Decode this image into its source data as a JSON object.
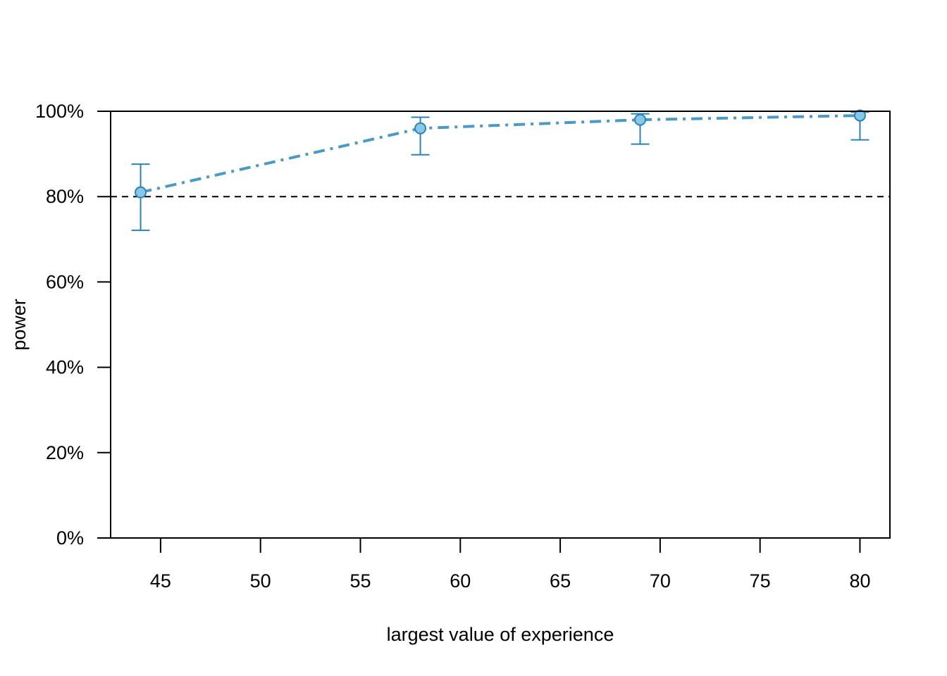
{
  "chart_data": {
    "type": "line",
    "title": "",
    "xlabel": "largest value of experience",
    "ylabel": "power",
    "xlim": [
      42.5,
      81.5
    ],
    "ylim": [
      0,
      100
    ],
    "x_ticks": [
      45,
      50,
      55,
      60,
      65,
      70,
      75,
      80
    ],
    "x_tick_labels": [
      "45",
      "50",
      "55",
      "60",
      "65",
      "70",
      "75",
      "80"
    ],
    "y_ticks": [
      0,
      20,
      40,
      60,
      80,
      100
    ],
    "y_tick_labels": [
      "0%",
      "20%",
      "40%",
      "60%",
      "80%",
      "100%"
    ],
    "reference_line": {
      "y": 80,
      "style": "dashed",
      "color": "#000000"
    },
    "grid": false,
    "legend": "none",
    "series": [
      {
        "x": [
          44,
          58,
          69,
          80
        ],
        "values": [
          81,
          96,
          98,
          99
        ],
        "ci_lower": [
          72.1,
          89.8,
          92.3,
          93.3
        ],
        "ci_upper": [
          87.6,
          98.6,
          99.4,
          99.8
        ],
        "line_color": "#4a9ac8",
        "marker_fill": "#87c8e8",
        "errorbar_color": "#2b83ba",
        "line_style": "dotdash"
      }
    ]
  }
}
